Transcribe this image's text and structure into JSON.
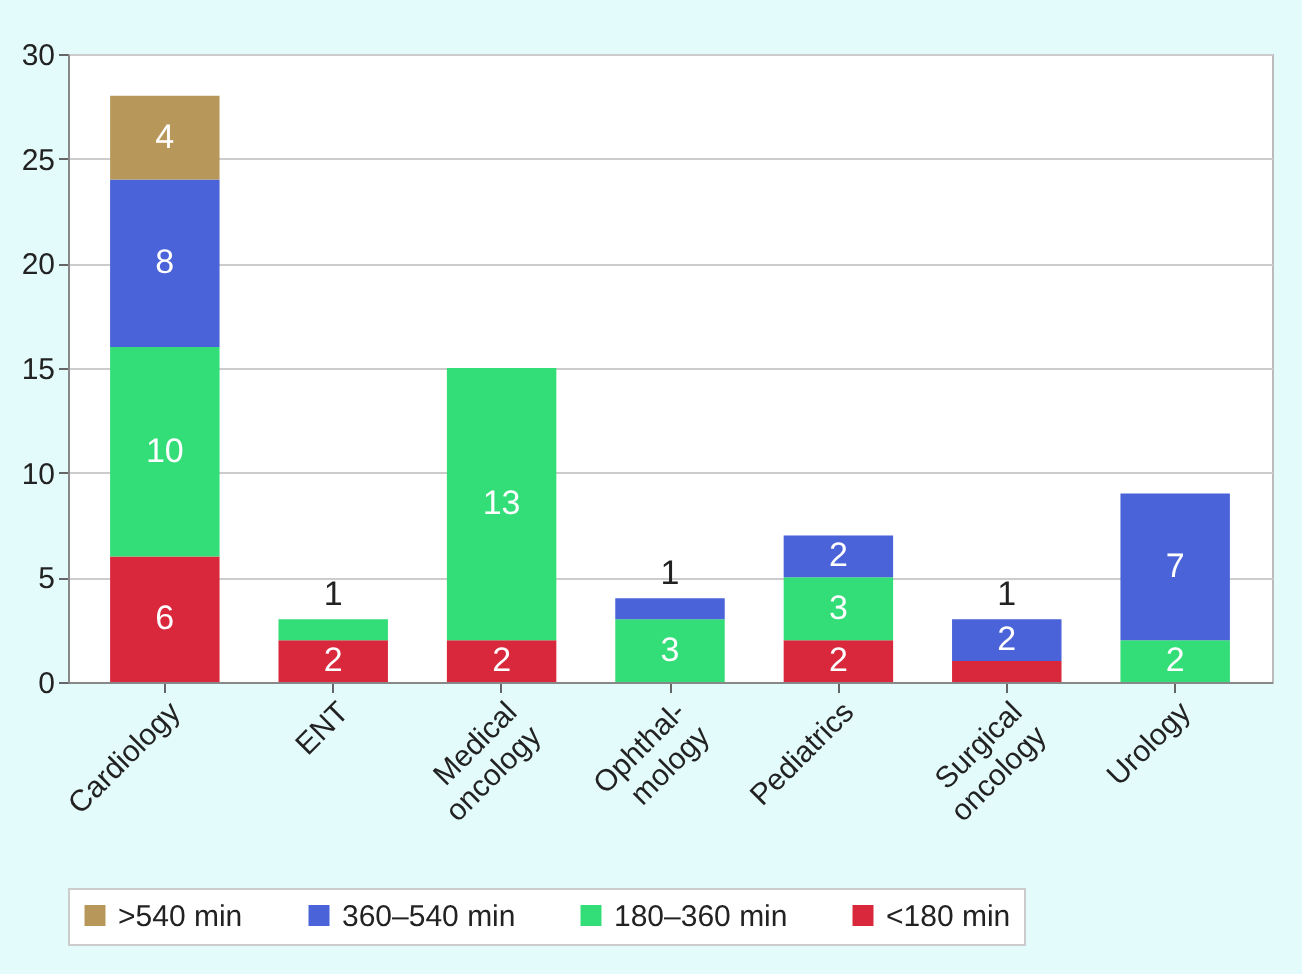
{
  "chart_data": {
    "type": "bar",
    "stacked": true,
    "categories": [
      "Cardiology",
      "ENT",
      "Medical\noncology",
      "Ophthal-\nmology",
      "Pediatrics",
      "Surgical\noncology",
      "Urology"
    ],
    "series": [
      {
        "name": "<180 min",
        "color": "#d9283c",
        "values": [
          6,
          2,
          2,
          null,
          2,
          1,
          null
        ]
      },
      {
        "name": "180–360 min",
        "color": "#33dd77",
        "values": [
          10,
          1,
          13,
          3,
          3,
          null,
          2
        ]
      },
      {
        "name": "360–540 min",
        "color": "#4a63d8",
        "values": [
          8,
          null,
          null,
          1,
          2,
          2,
          7
        ]
      },
      {
        "name": ">540 min",
        "color": "#b8985a",
        "values": [
          4,
          null,
          null,
          null,
          null,
          null,
          null
        ]
      }
    ],
    "ylim": [
      0,
      30
    ],
    "yticks": [
      0,
      5,
      10,
      15,
      20,
      25,
      30
    ],
    "grid": "y",
    "legend": "bottom",
    "data_labels": true
  }
}
